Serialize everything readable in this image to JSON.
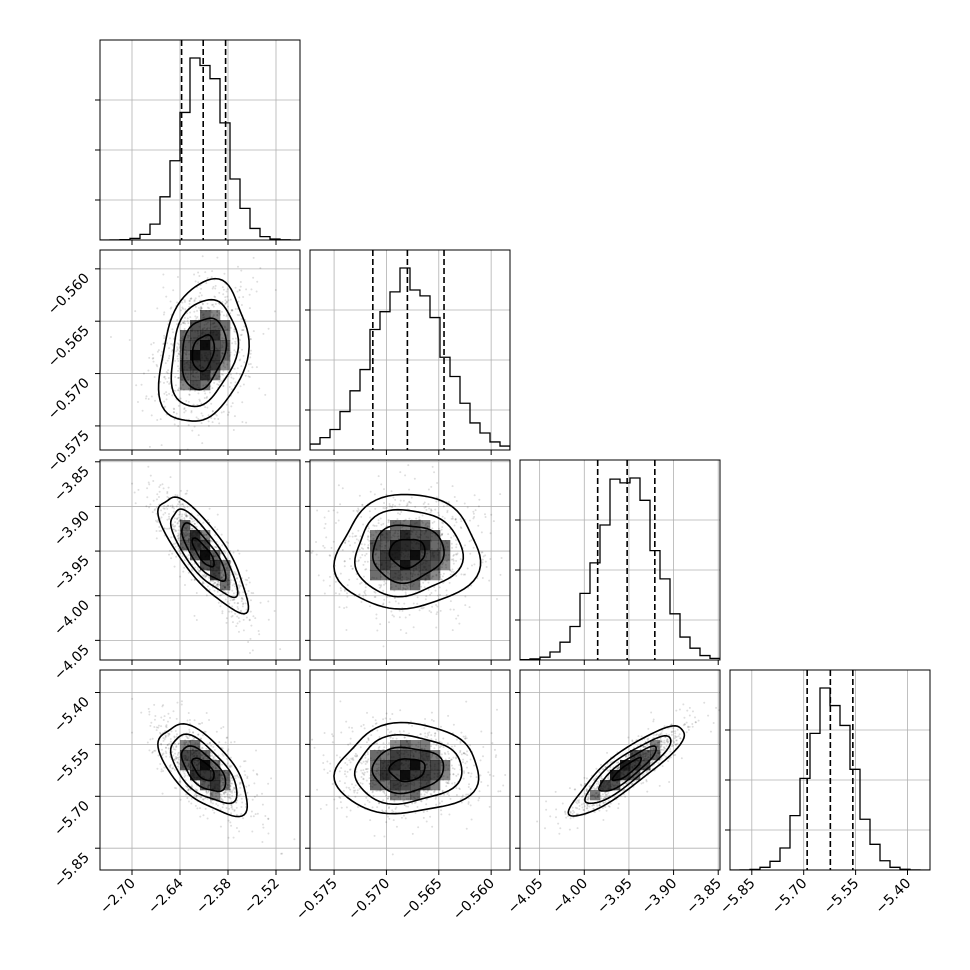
{
  "chart_data": {
    "type": "corner",
    "grid": true,
    "parameters": [
      {
        "range": [
          -2.74,
          -2.49
        ],
        "ticks": [
          -2.7,
          -2.64,
          -2.58,
          -2.52
        ],
        "tick_labels": [
          "−2.70",
          "−2.64",
          "−2.58",
          "−2.52"
        ],
        "quantiles": [
          -2.638,
          -2.611,
          -2.583
        ],
        "median": -2.611,
        "sigma": 0.0275,
        "hist_yticks": [
          0.2,
          0.45,
          0.7
        ]
      },
      {
        "range": [
          -0.5773,
          -0.5582
        ],
        "ticks": [
          -0.575,
          -0.57,
          -0.565,
          -0.56
        ],
        "tick_labels": [
          "−0.575",
          "−0.570",
          "−0.565",
          "−0.560"
        ],
        "quantiles": [
          -0.5713,
          -0.568,
          -0.5645
        ],
        "median": -0.568,
        "sigma": 0.0034,
        "hist_yticks": [
          0.2,
          0.45,
          0.7
        ]
      },
      {
        "range": [
          -4.072,
          -3.848
        ],
        "ticks": [
          -4.05,
          -4.0,
          -3.95,
          -3.9,
          -3.85
        ],
        "tick_labels": [
          "−4.05",
          "−4.00",
          "−3.95",
          "−3.90",
          "−3.85"
        ],
        "quantiles": [
          -3.985,
          -3.952,
          -3.921
        ],
        "median": -3.952,
        "sigma": 0.032,
        "hist_yticks": [
          0.2,
          0.45,
          0.7
        ]
      },
      {
        "range": [
          -5.913,
          -5.335
        ],
        "ticks": [
          -5.85,
          -5.7,
          -5.55,
          -5.4
        ],
        "tick_labels": [
          "−5.85",
          "−5.70",
          "−5.55",
          "−5.40"
        ],
        "quantiles": [
          -5.69,
          -5.623,
          -5.558
        ],
        "median": -5.623,
        "sigma": 0.065,
        "hist_yticks": [
          0.2,
          0.45,
          0.7
        ]
      }
    ],
    "correlations": [
      [
        1.0,
        0.25,
        -0.8,
        -0.62
      ],
      [
        0.25,
        1.0,
        0.05,
        0.05
      ],
      [
        -0.8,
        0.05,
        1.0,
        0.88
      ],
      [
        -0.62,
        0.05,
        0.88,
        1.0
      ]
    ],
    "contour_levels_sigma": [
      0.5,
      1.0,
      1.5,
      2.0
    ],
    "hist_bins": 20,
    "colors": {
      "contour": "#000000",
      "density": "#000000",
      "scatter": "#000000",
      "grid": "#b0b0b0"
    }
  }
}
